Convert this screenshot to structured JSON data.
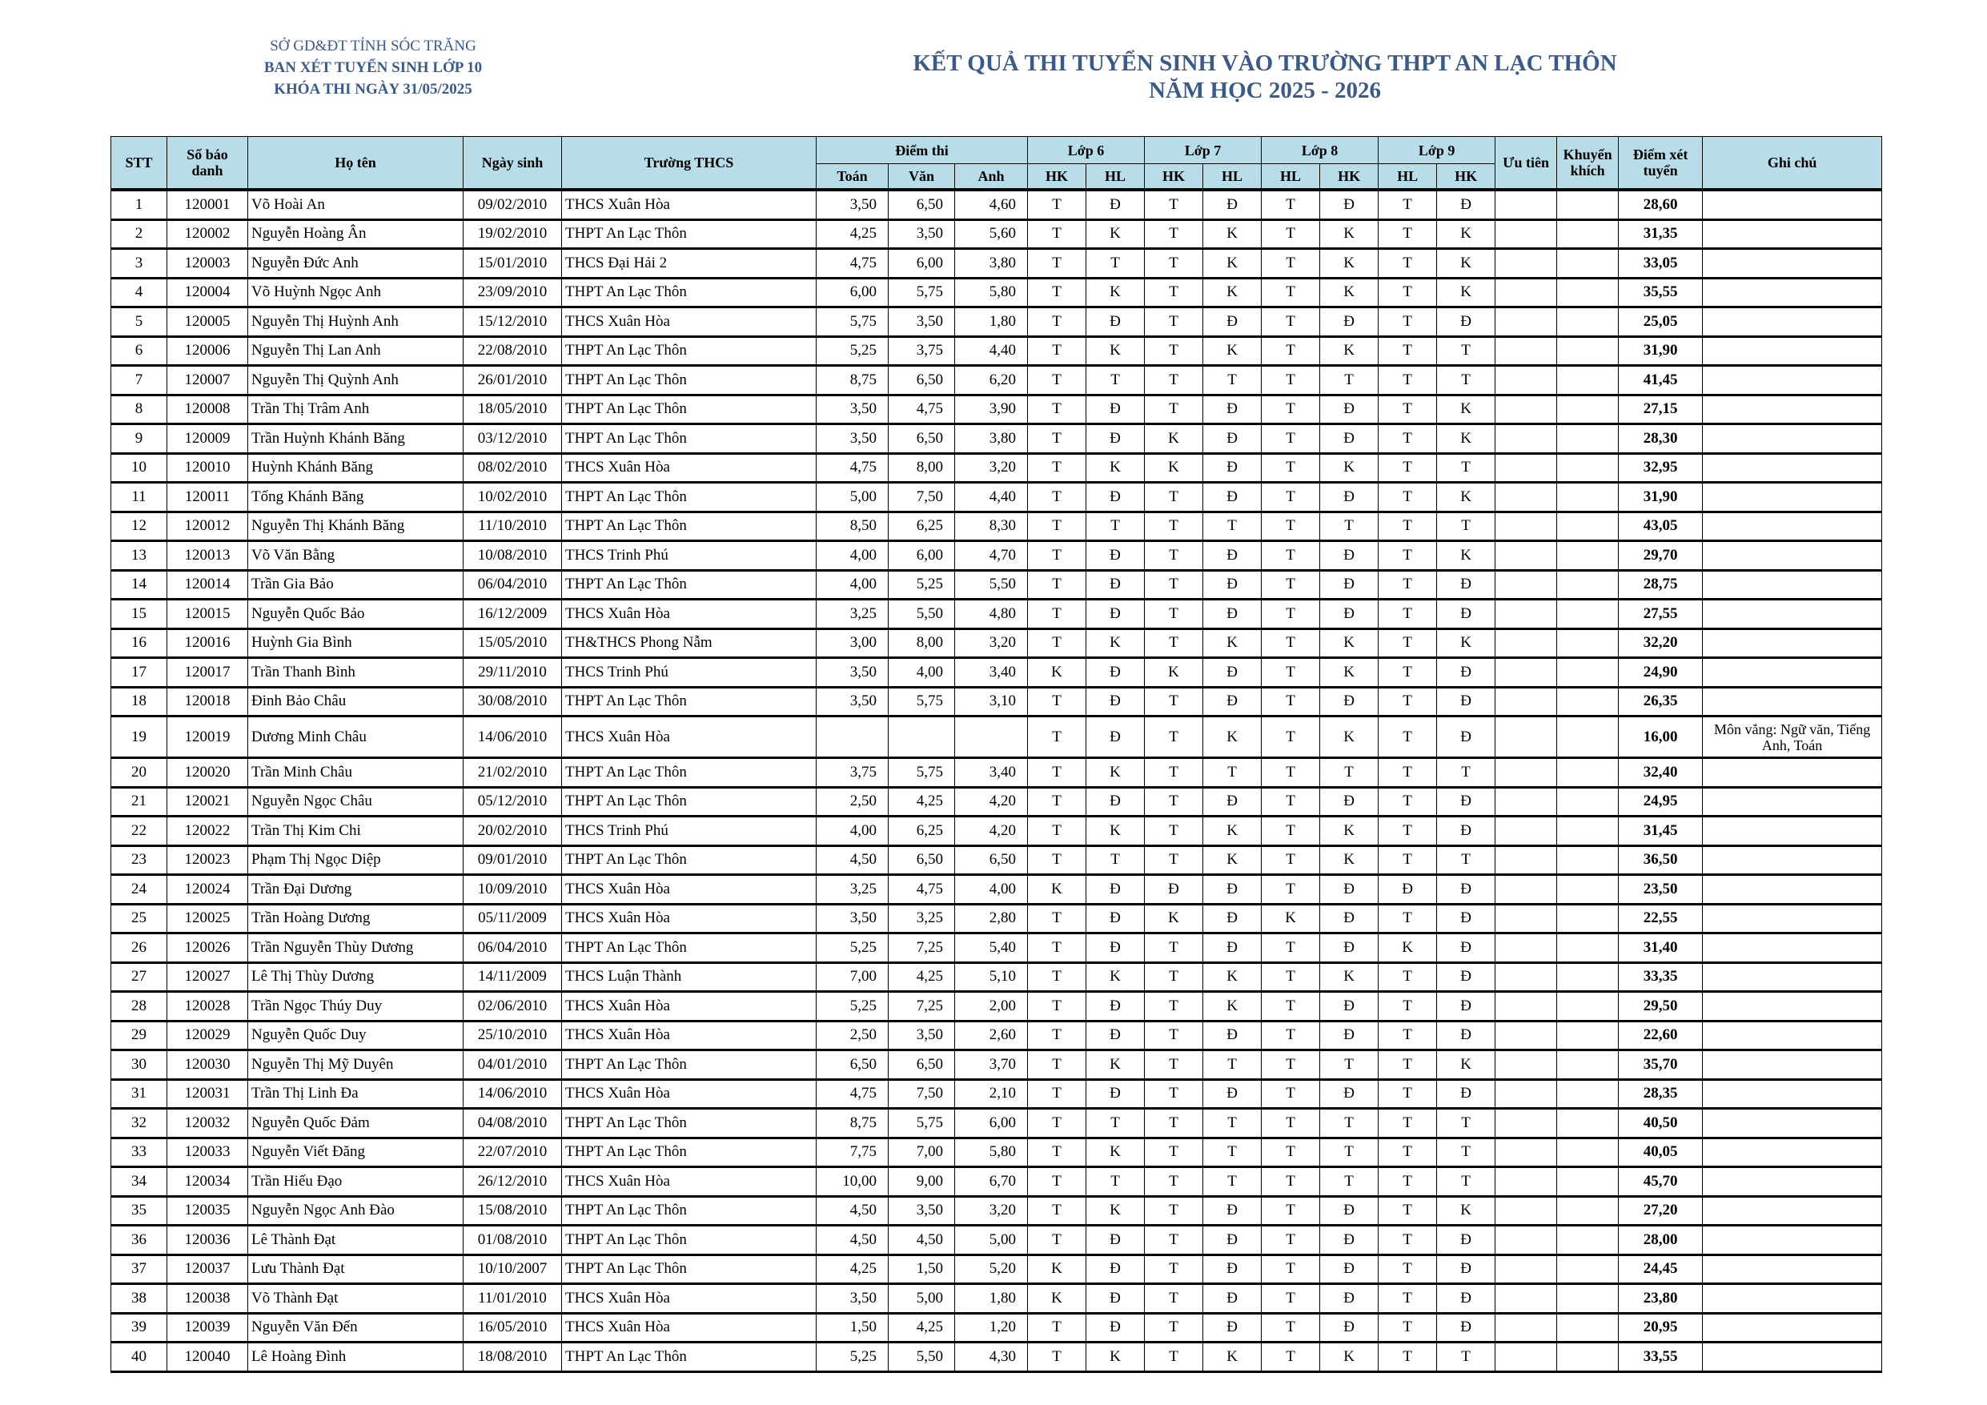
{
  "header": {
    "org_lines": [
      "SỞ GD&ĐT TỈNH SÓC TRĂNG",
      "BAN XÉT TUYỂN SINH LỚP 10",
      "KHÓA THI NGÀY 31/05/2025"
    ],
    "title_lines": [
      "KẾT QUẢ THI TUYỂN SINH VÀO TRƯỜNG THPT AN LẠC THÔN",
      "NĂM HỌC 2025 - 2026"
    ]
  },
  "colors": {
    "header_bg": "#b7dde8",
    "title": "#3a5a8c"
  },
  "columns": {
    "stt": "STT",
    "sbd": "Số báo danh",
    "name": "Họ tên",
    "dob": "Ngày sinh",
    "school": "Trường THCS",
    "scores": "Điểm thi",
    "lop6": "Lớp 6",
    "lop7": "Lớp 7",
    "lop8": "Lớp 8",
    "lop9": "Lớp 9",
    "uutien": "Ưu tiên",
    "khuyenkhich": "Khuyến khích",
    "diem": "Điểm xét tuyển",
    "ghichu": "Ghi chú",
    "sub": [
      "Toán",
      "Văn",
      "Anh",
      "HK",
      "HL",
      "HK",
      "HL",
      "HL",
      "HK",
      "HL",
      "HK"
    ]
  },
  "rows": [
    [
      "1",
      "120001",
      "Võ Hoài An",
      "09/02/2010",
      "THCS Xuân Hòa",
      "3,50",
      "6,50",
      "4,60",
      "T",
      "Đ",
      "T",
      "Đ",
      "T",
      "Đ",
      "T",
      "Đ",
      "",
      "",
      "28,60",
      ""
    ],
    [
      "2",
      "120002",
      "Nguyễn Hoàng Ân",
      "19/02/2010",
      "THPT An Lạc Thôn",
      "4,25",
      "3,50",
      "5,60",
      "T",
      "K",
      "T",
      "K",
      "T",
      "K",
      "T",
      "K",
      "",
      "",
      "31,35",
      ""
    ],
    [
      "3",
      "120003",
      "Nguyễn Đức Anh",
      "15/01/2010",
      "THCS Đại Hải 2",
      "4,75",
      "6,00",
      "3,80",
      "T",
      "T",
      "T",
      "K",
      "T",
      "K",
      "T",
      "K",
      "",
      "",
      "33,05",
      ""
    ],
    [
      "4",
      "120004",
      "Võ Huỳnh Ngọc Anh",
      "23/09/2010",
      "THPT An Lạc Thôn",
      "6,00",
      "5,75",
      "5,80",
      "T",
      "K",
      "T",
      "K",
      "T",
      "K",
      "T",
      "K",
      "",
      "",
      "35,55",
      ""
    ],
    [
      "5",
      "120005",
      "Nguyễn Thị Huỳnh Anh",
      "15/12/2010",
      "THCS Xuân Hòa",
      "5,75",
      "3,50",
      "1,80",
      "T",
      "Đ",
      "T",
      "Đ",
      "T",
      "Đ",
      "T",
      "Đ",
      "",
      "",
      "25,05",
      ""
    ],
    [
      "6",
      "120006",
      "Nguyễn Thị Lan Anh",
      "22/08/2010",
      "THPT An Lạc Thôn",
      "5,25",
      "3,75",
      "4,40",
      "T",
      "K",
      "T",
      "K",
      "T",
      "K",
      "T",
      "T",
      "",
      "",
      "31,90",
      ""
    ],
    [
      "7",
      "120007",
      "Nguyễn Thị Quỳnh Anh",
      "26/01/2010",
      "THPT An Lạc Thôn",
      "8,75",
      "6,50",
      "6,20",
      "T",
      "T",
      "T",
      "T",
      "T",
      "T",
      "T",
      "T",
      "",
      "",
      "41,45",
      ""
    ],
    [
      "8",
      "120008",
      "Trần Thị Trâm Anh",
      "18/05/2010",
      "THPT An Lạc Thôn",
      "3,50",
      "4,75",
      "3,90",
      "T",
      "Đ",
      "T",
      "Đ",
      "T",
      "Đ",
      "T",
      "K",
      "",
      "",
      "27,15",
      ""
    ],
    [
      "9",
      "120009",
      "Trần Huỳnh Khánh Băng",
      "03/12/2010",
      "THPT An Lạc Thôn",
      "3,50",
      "6,50",
      "3,80",
      "T",
      "Đ",
      "K",
      "Đ",
      "T",
      "Đ",
      "T",
      "K",
      "",
      "",
      "28,30",
      ""
    ],
    [
      "10",
      "120010",
      "Huỳnh Khánh Băng",
      "08/02/2010",
      "THCS Xuân Hòa",
      "4,75",
      "8,00",
      "3,20",
      "T",
      "K",
      "K",
      "Đ",
      "T",
      "K",
      "T",
      "T",
      "",
      "",
      "32,95",
      ""
    ],
    [
      "11",
      "120011",
      "Tống Khánh Băng",
      "10/02/2010",
      "THPT An Lạc Thôn",
      "5,00",
      "7,50",
      "4,40",
      "T",
      "Đ",
      "T",
      "Đ",
      "T",
      "Đ",
      "T",
      "K",
      "",
      "",
      "31,90",
      ""
    ],
    [
      "12",
      "120012",
      "Nguyễn Thị Khánh Băng",
      "11/10/2010",
      "THPT An Lạc Thôn",
      "8,50",
      "6,25",
      "8,30",
      "T",
      "T",
      "T",
      "T",
      "T",
      "T",
      "T",
      "T",
      "",
      "",
      "43,05",
      ""
    ],
    [
      "13",
      "120013",
      "Võ Văn Bằng",
      "10/08/2010",
      "THCS Trinh Phú",
      "4,00",
      "6,00",
      "4,70",
      "T",
      "Đ",
      "T",
      "Đ",
      "T",
      "Đ",
      "T",
      "K",
      "",
      "",
      "29,70",
      ""
    ],
    [
      "14",
      "120014",
      "Trần Gia Bảo",
      "06/04/2010",
      "THPT An Lạc Thôn",
      "4,00",
      "5,25",
      "5,50",
      "T",
      "Đ",
      "T",
      "Đ",
      "T",
      "Đ",
      "T",
      "Đ",
      "",
      "",
      "28,75",
      ""
    ],
    [
      "15",
      "120015",
      "Nguyễn Quốc Bảo",
      "16/12/2009",
      "THCS Xuân Hòa",
      "3,25",
      "5,50",
      "4,80",
      "T",
      "Đ",
      "T",
      "Đ",
      "T",
      "Đ",
      "T",
      "Đ",
      "",
      "",
      "27,55",
      ""
    ],
    [
      "16",
      "120016",
      "Huỳnh Gia Bình",
      "15/05/2010",
      "TH&THCS Phong Nẫm",
      "3,00",
      "8,00",
      "3,20",
      "T",
      "K",
      "T",
      "K",
      "T",
      "K",
      "T",
      "K",
      "",
      "",
      "32,20",
      ""
    ],
    [
      "17",
      "120017",
      "Trần Thanh Bình",
      "29/11/2010",
      "THCS Trinh Phú",
      "3,50",
      "4,00",
      "3,40",
      "K",
      "Đ",
      "K",
      "Đ",
      "T",
      "K",
      "T",
      "Đ",
      "",
      "",
      "24,90",
      ""
    ],
    [
      "18",
      "120018",
      "Đinh Bảo Châu",
      "30/08/2010",
      "THPT An Lạc Thôn",
      "3,50",
      "5,75",
      "3,10",
      "T",
      "Đ",
      "T",
      "Đ",
      "T",
      "Đ",
      "T",
      "Đ",
      "",
      "",
      "26,35",
      ""
    ],
    [
      "19",
      "120019",
      "Dương Minh Châu",
      "14/06/2010",
      "THCS Xuân Hòa",
      "",
      "",
      "",
      "T",
      "Đ",
      "T",
      "K",
      "T",
      "K",
      "T",
      "Đ",
      "",
      "",
      "16,00",
      "Môn vắng: Ngữ văn, Tiếng Anh, Toán"
    ],
    [
      "20",
      "120020",
      "Trần Minh Châu",
      "21/02/2010",
      "THPT An Lạc Thôn",
      "3,75",
      "5,75",
      "3,40",
      "T",
      "K",
      "T",
      "T",
      "T",
      "T",
      "T",
      "T",
      "",
      "",
      "32,40",
      ""
    ],
    [
      "21",
      "120021",
      "Nguyễn Ngọc Châu",
      "05/12/2010",
      "THPT An Lạc Thôn",
      "2,50",
      "4,25",
      "4,20",
      "T",
      "Đ",
      "T",
      "Đ",
      "T",
      "Đ",
      "T",
      "Đ",
      "",
      "",
      "24,95",
      ""
    ],
    [
      "22",
      "120022",
      "Trần Thị Kim Chi",
      "20/02/2010",
      "THCS Trinh Phú",
      "4,00",
      "6,25",
      "4,20",
      "T",
      "K",
      "T",
      "K",
      "T",
      "K",
      "T",
      "Đ",
      "",
      "",
      "31,45",
      ""
    ],
    [
      "23",
      "120023",
      "Phạm Thị Ngọc Diệp",
      "09/01/2010",
      "THPT An Lạc Thôn",
      "4,50",
      "6,50",
      "6,50",
      "T",
      "T",
      "T",
      "K",
      "T",
      "K",
      "T",
      "T",
      "",
      "",
      "36,50",
      ""
    ],
    [
      "24",
      "120024",
      "Trần Đại Dương",
      "10/09/2010",
      "THCS Xuân Hòa",
      "3,25",
      "4,75",
      "4,00",
      "K",
      "Đ",
      "Đ",
      "Đ",
      "T",
      "Đ",
      "Đ",
      "Đ",
      "",
      "",
      "23,50",
      ""
    ],
    [
      "25",
      "120025",
      "Trần Hoàng Dương",
      "05/11/2009",
      "THCS Xuân Hòa",
      "3,50",
      "3,25",
      "2,80",
      "T",
      "Đ",
      "K",
      "Đ",
      "K",
      "Đ",
      "T",
      "Đ",
      "",
      "",
      "22,55",
      ""
    ],
    [
      "26",
      "120026",
      "Trần Nguyễn Thùy Dương",
      "06/04/2010",
      "THPT An Lạc Thôn",
      "5,25",
      "7,25",
      "5,40",
      "T",
      "Đ",
      "T",
      "Đ",
      "T",
      "Đ",
      "K",
      "Đ",
      "",
      "",
      "31,40",
      ""
    ],
    [
      "27",
      "120027",
      "Lê Thị Thùy Dương",
      "14/11/2009",
      "THCS Luận Thành",
      "7,00",
      "4,25",
      "5,10",
      "T",
      "K",
      "T",
      "K",
      "T",
      "K",
      "T",
      "Đ",
      "",
      "",
      "33,35",
      ""
    ],
    [
      "28",
      "120028",
      "Trần Ngọc Thúy Duy",
      "02/06/2010",
      "THCS Xuân Hòa",
      "5,25",
      "7,25",
      "2,00",
      "T",
      "Đ",
      "T",
      "K",
      "T",
      "Đ",
      "T",
      "Đ",
      "",
      "",
      "29,50",
      ""
    ],
    [
      "29",
      "120029",
      "Nguyễn Quốc Duy",
      "25/10/2010",
      "THCS Xuân Hòa",
      "2,50",
      "3,50",
      "2,60",
      "T",
      "Đ",
      "T",
      "Đ",
      "T",
      "Đ",
      "T",
      "Đ",
      "",
      "",
      "22,60",
      ""
    ],
    [
      "30",
      "120030",
      "Nguyễn Thị Mỹ Duyên",
      "04/01/2010",
      "THPT An Lạc Thôn",
      "6,50",
      "6,50",
      "3,70",
      "T",
      "K",
      "T",
      "T",
      "T",
      "T",
      "T",
      "K",
      "",
      "",
      "35,70",
      ""
    ],
    [
      "31",
      "120031",
      "Trần Thị Linh Đa",
      "14/06/2010",
      "THCS Xuân Hòa",
      "4,75",
      "7,50",
      "2,10",
      "T",
      "Đ",
      "T",
      "Đ",
      "T",
      "Đ",
      "T",
      "Đ",
      "",
      "",
      "28,35",
      ""
    ],
    [
      "32",
      "120032",
      "Nguyễn Quốc Đảm",
      "04/08/2010",
      "THPT An Lạc Thôn",
      "8,75",
      "5,75",
      "6,00",
      "T",
      "T",
      "T",
      "T",
      "T",
      "T",
      "T",
      "T",
      "",
      "",
      "40,50",
      ""
    ],
    [
      "33",
      "120033",
      "Nguyễn Viết Đăng",
      "22/07/2010",
      "THPT An Lạc Thôn",
      "7,75",
      "7,00",
      "5,80",
      "T",
      "K",
      "T",
      "T",
      "T",
      "T",
      "T",
      "T",
      "",
      "",
      "40,05",
      ""
    ],
    [
      "34",
      "120034",
      "Trần Hiếu Đạo",
      "26/12/2010",
      "THCS Xuân Hòa",
      "10,00",
      "9,00",
      "6,70",
      "T",
      "T",
      "T",
      "T",
      "T",
      "T",
      "T",
      "T",
      "",
      "",
      "45,70",
      ""
    ],
    [
      "35",
      "120035",
      "Nguyễn Ngọc Anh Đào",
      "15/08/2010",
      "THPT An Lạc Thôn",
      "4,50",
      "3,50",
      "3,20",
      "T",
      "K",
      "T",
      "Đ",
      "T",
      "Đ",
      "T",
      "K",
      "",
      "",
      "27,20",
      ""
    ],
    [
      "36",
      "120036",
      "Lê Thành Đạt",
      "01/08/2010",
      "THPT An Lạc Thôn",
      "4,50",
      "4,50",
      "5,00",
      "T",
      "Đ",
      "T",
      "Đ",
      "T",
      "Đ",
      "T",
      "Đ",
      "",
      "",
      "28,00",
      ""
    ],
    [
      "37",
      "120037",
      "Lưu Thành Đạt",
      "10/10/2007",
      "THPT An Lạc Thôn",
      "4,25",
      "1,50",
      "5,20",
      "K",
      "Đ",
      "T",
      "Đ",
      "T",
      "Đ",
      "T",
      "Đ",
      "",
      "",
      "24,45",
      ""
    ],
    [
      "38",
      "120038",
      "Võ Thành Đạt",
      "11/01/2010",
      "THCS Xuân Hòa",
      "3,50",
      "5,00",
      "1,80",
      "K",
      "Đ",
      "T",
      "Đ",
      "T",
      "Đ",
      "T",
      "Đ",
      "",
      "",
      "23,80",
      ""
    ],
    [
      "39",
      "120039",
      "Nguyễn Văn Đến",
      "16/05/2010",
      "THCS Xuân Hòa",
      "1,50",
      "4,25",
      "1,20",
      "T",
      "Đ",
      "T",
      "Đ",
      "T",
      "Đ",
      "T",
      "Đ",
      "",
      "",
      "20,95",
      ""
    ],
    [
      "40",
      "120040",
      "Lê Hoàng Đình",
      "18/08/2010",
      "THPT An Lạc Thôn",
      "5,25",
      "5,50",
      "4,30",
      "T",
      "K",
      "T",
      "K",
      "T",
      "K",
      "T",
      "T",
      "",
      "",
      "33,55",
      ""
    ]
  ]
}
